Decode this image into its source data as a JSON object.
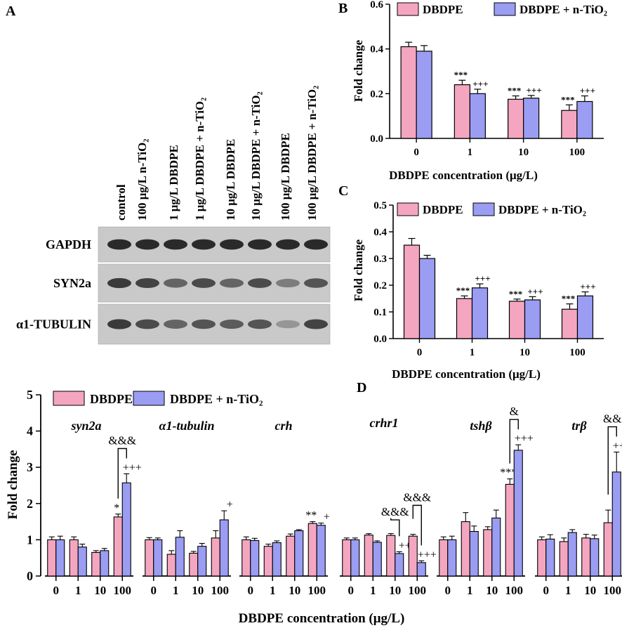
{
  "colors": {
    "dbdpe": "#f4a6c0",
    "tio2": "#9a9df2",
    "axis": "#000000",
    "band": "#1e1e1e"
  },
  "panel_labels": {
    "a": "A",
    "b": "B",
    "c": "C",
    "d": "D"
  },
  "blot": {
    "lanes": [
      "control",
      "100 μg/L n-TiO₂",
      "1 μg/L DBDPE",
      "1 μg/L DBDPE + n-TiO₂",
      "10 μg/L DBDPE",
      "10 μg/L DBDPE + n-TiO₂",
      "100 μg/L DBDPE",
      "100 μg/L DBDPE + n-TiO₂"
    ],
    "rows": [
      {
        "label": "GAPDH",
        "intensity": [
          0.95,
          0.95,
          0.95,
          0.95,
          0.95,
          0.95,
          0.95,
          0.95
        ]
      },
      {
        "label": "SYN2a",
        "intensity": [
          0.85,
          0.8,
          0.6,
          0.75,
          0.6,
          0.75,
          0.45,
          0.7
        ]
      },
      {
        "label": "α1-TUBULIN",
        "intensity": [
          0.85,
          0.75,
          0.6,
          0.7,
          0.65,
          0.7,
          0.3,
          0.8
        ]
      }
    ]
  },
  "chart_data": [
    {
      "id": "B",
      "type": "bar",
      "title": "",
      "xlabel": "DBDPE concentration (μg/L)",
      "ylabel": "Fold change",
      "ylim": [
        0,
        0.6
      ],
      "yticks": [
        "0.0",
        "0.2",
        "0.4",
        "0.6"
      ],
      "tick_values": [
        0,
        0.2,
        0.4,
        0.6
      ],
      "categories": [
        "0",
        "1",
        "10",
        "100"
      ],
      "legend": [
        "DBDPE",
        "DBDPE + n-TiO₂"
      ],
      "series": [
        {
          "name": "DBDPE",
          "values": [
            0.41,
            0.24,
            0.175,
            0.125
          ],
          "errors": [
            0.02,
            0.02,
            0.015,
            0.025
          ],
          "marks": [
            "",
            "***",
            "***",
            "***"
          ]
        },
        {
          "name": "DBDPE + n-TiO₂",
          "values": [
            0.39,
            0.2,
            0.18,
            0.165
          ],
          "errors": [
            0.025,
            0.02,
            0.012,
            0.025
          ],
          "marks": [
            "",
            "+++",
            "+++",
            "+++"
          ]
        }
      ]
    },
    {
      "id": "C",
      "type": "bar",
      "title": "",
      "xlabel": "DBDPE concentration (μg/L)",
      "ylabel": "Fold change",
      "ylim": [
        0,
        0.5
      ],
      "yticks": [
        "0.0",
        "0.1",
        "0.2",
        "0.3",
        "0.4",
        "0.5"
      ],
      "tick_values": [
        0,
        0.1,
        0.2,
        0.3,
        0.4,
        0.5
      ],
      "categories": [
        "0",
        "1",
        "10",
        "100"
      ],
      "legend": [
        "DBDPE",
        "DBDPE + n-TiO₂"
      ],
      "series": [
        {
          "name": "DBDPE",
          "values": [
            0.35,
            0.15,
            0.14,
            0.11
          ],
          "errors": [
            0.025,
            0.01,
            0.008,
            0.02
          ],
          "marks": [
            "",
            "***",
            "***",
            "***"
          ]
        },
        {
          "name": "DBDPE + n-TiO₂",
          "values": [
            0.3,
            0.19,
            0.145,
            0.16
          ],
          "errors": [
            0.012,
            0.015,
            0.012,
            0.015
          ],
          "marks": [
            "",
            "+++",
            "+++",
            "+++"
          ]
        }
      ]
    },
    {
      "id": "D",
      "type": "bar",
      "title": "",
      "xlabel": "DBDPE concentration (μg/L)",
      "ylabel": "Fold change",
      "ylim": [
        0,
        5
      ],
      "yticks": [
        "0",
        "1",
        "2",
        "3",
        "4",
        "5"
      ],
      "tick_values": [
        0,
        1,
        2,
        3,
        4,
        5
      ],
      "categories": [
        "0",
        "1",
        "10",
        "100"
      ],
      "legend": [
        "DBDPE",
        "DBDPE + n-TiO₂"
      ],
      "groups": [
        {
          "gene": "syn2a",
          "dbdpe": [
            1.0,
            1.0,
            0.65,
            1.63
          ],
          "dbdpe_err": [
            0.08,
            0.08,
            0.05,
            0.08
          ],
          "tio2": [
            1.0,
            0.8,
            0.7,
            2.57
          ],
          "tio2_err": [
            0.1,
            0.08,
            0.06,
            0.25
          ],
          "marks_dbdpe": [
            "",
            "",
            "",
            "*"
          ],
          "marks_tio2": [
            "",
            "",
            "",
            "+++"
          ],
          "bracket": {
            "label": "&&&",
            "category": 3
          }
        },
        {
          "gene": "α1-tubulin",
          "dbdpe": [
            1.0,
            0.6,
            0.63,
            1.05
          ],
          "dbdpe_err": [
            0.06,
            0.1,
            0.05,
            0.2
          ],
          "tio2": [
            1.0,
            1.07,
            0.82,
            1.55
          ],
          "tio2_err": [
            0.05,
            0.18,
            0.08,
            0.25
          ],
          "marks_dbdpe": [
            "",
            "",
            "",
            ""
          ],
          "marks_tio2": [
            "",
            "",
            "",
            "+"
          ],
          "bracket": null
        },
        {
          "gene": "crh",
          "dbdpe": [
            1.0,
            0.82,
            1.1,
            1.45
          ],
          "dbdpe_err": [
            0.08,
            0.06,
            0.06,
            0.05
          ],
          "tio2": [
            0.98,
            0.92,
            1.25,
            1.4
          ],
          "tio2_err": [
            0.06,
            0.05,
            0.03,
            0.06
          ],
          "marks_dbdpe": [
            "",
            "",
            "",
            "**"
          ],
          "marks_tio2": [
            "",
            "",
            "",
            "+"
          ],
          "bracket": null
        },
        {
          "gene": "crhr1",
          "dbdpe": [
            1.0,
            1.13,
            1.12,
            1.1
          ],
          "dbdpe_err": [
            0.05,
            0.04,
            0.05,
            0.05
          ],
          "tio2": [
            1.0,
            0.93,
            0.62,
            0.37
          ],
          "tio2_err": [
            0.05,
            0.04,
            0.05,
            0.05
          ],
          "marks_dbdpe": [
            "",
            "",
            "",
            ""
          ],
          "marks_tio2": [
            "",
            "",
            "++",
            "+++"
          ],
          "bracket": [
            {
              "label": "&&&",
              "category": 2
            },
            {
              "label": "&&&",
              "category": 3
            }
          ]
        },
        {
          "gene": "tshβ",
          "dbdpe": [
            1.0,
            1.5,
            1.28,
            2.53
          ],
          "dbdpe_err": [
            0.08,
            0.25,
            0.08,
            0.15
          ],
          "tio2": [
            1.0,
            1.23,
            1.6,
            3.47
          ],
          "tio2_err": [
            0.1,
            0.15,
            0.22,
            0.15
          ],
          "marks_dbdpe": [
            "",
            "",
            "",
            "***"
          ],
          "marks_tio2": [
            "",
            "",
            "",
            "+++"
          ],
          "bracket": {
            "label": "&",
            "category": 3
          }
        },
        {
          "gene": "trβ",
          "dbdpe": [
            1.0,
            0.95,
            1.05,
            1.47
          ],
          "dbdpe_err": [
            0.08,
            0.1,
            0.1,
            0.35
          ],
          "tio2": [
            1.02,
            1.2,
            1.03,
            2.87
          ],
          "tio2_err": [
            0.12,
            0.08,
            0.1,
            0.55
          ],
          "marks_dbdpe": [
            "",
            "",
            "",
            ""
          ],
          "marks_tio2": [
            "",
            "",
            "",
            "+++"
          ],
          "bracket": {
            "label": "&&",
            "category": 3
          }
        }
      ]
    }
  ]
}
